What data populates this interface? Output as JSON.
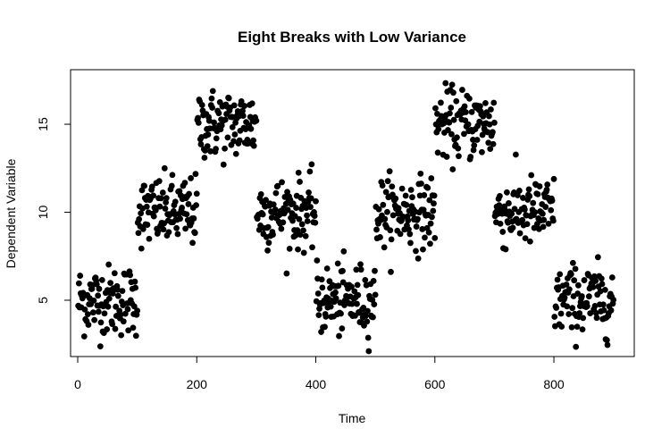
{
  "chart_data": {
    "type": "scatter",
    "title": "Eight Breaks with Low Variance",
    "xlabel": "Time",
    "ylabel": "Dependent Variable",
    "xlim": [
      -12,
      935
    ],
    "ylim": [
      1.8,
      18.1
    ],
    "xticks": [
      0,
      200,
      400,
      600,
      800
    ],
    "yticks": [
      5,
      10,
      15
    ],
    "point_color": "#000000",
    "grid": false,
    "legend": "none",
    "segments": [
      {
        "x_start": 1,
        "x_end": 100,
        "mean": 5
      },
      {
        "x_start": 101,
        "x_end": 200,
        "mean": 10
      },
      {
        "x_start": 201,
        "x_end": 300,
        "mean": 15
      },
      {
        "x_start": 301,
        "x_end": 400,
        "mean": 10
      },
      {
        "x_start": 401,
        "x_end": 500,
        "mean": 5
      },
      {
        "x_start": 501,
        "x_end": 600,
        "mean": 10
      },
      {
        "x_start": 601,
        "x_end": 700,
        "mean": 15
      },
      {
        "x_start": 701,
        "x_end": 800,
        "mean": 10
      },
      {
        "x_start": 801,
        "x_end": 900,
        "mean": 5
      }
    ],
    "noise_sd": 1
  }
}
